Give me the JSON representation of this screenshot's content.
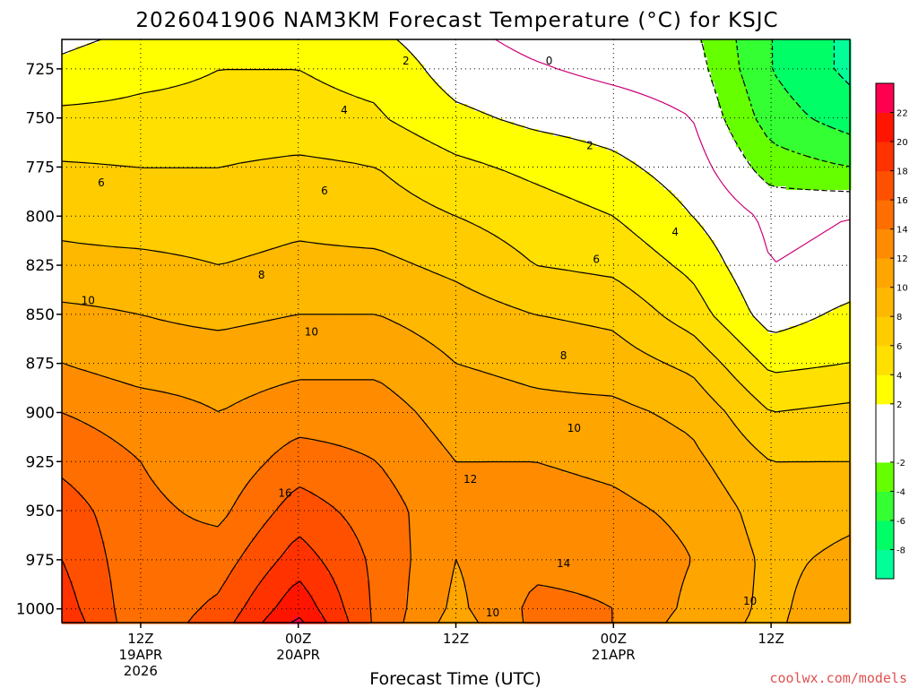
{
  "chart_data": {
    "type": "heatmap",
    "title": "2026041906 NAM3KM Forecast Temperature (°C) for KSJC",
    "xlabel": "Forecast Time (UTC)",
    "ylabel": "",
    "credit": "coolwx.com/models",
    "xlim": [
      0,
      60
    ],
    "x_ticks": [
      {
        "value": 6,
        "lines": [
          "12Z",
          "19APR",
          "2026"
        ]
      },
      {
        "value": 18,
        "lines": [
          "00Z",
          "20APR"
        ]
      },
      {
        "value": 30,
        "lines": [
          "12Z"
        ]
      },
      {
        "value": 42,
        "lines": [
          "00Z",
          "21APR"
        ]
      },
      {
        "value": 54,
        "lines": [
          "12Z"
        ]
      }
    ],
    "ylim": [
      1007,
      710
    ],
    "y_ticks": [
      725,
      750,
      775,
      800,
      825,
      850,
      875,
      900,
      925,
      950,
      975,
      1000
    ],
    "surface_pressure": 1007,
    "colorbar": {
      "levels": [
        -10,
        -8,
        -6,
        -4,
        -2,
        0,
        2,
        4,
        6,
        8,
        10,
        12,
        14,
        16,
        18,
        20,
        22,
        24
      ],
      "labels": [
        "-8",
        "-6",
        "-4",
        "-2",
        "2",
        "4",
        "6",
        "8",
        "10",
        "12",
        "14",
        "16",
        "18",
        "20",
        "22"
      ],
      "colors": [
        "#00ff99",
        "#00ff66",
        "#33ff33",
        "#66ff00",
        "#ffffff",
        "#ffffff",
        "#ffff00",
        "#ffe000",
        "#ffcc00",
        "#ffb800",
        "#ffa500",
        "#ff8c00",
        "#ff6e00",
        "#ff5000",
        "#ff3200",
        "#ff1400",
        "#ff0050"
      ]
    },
    "contour_labels": [
      {
        "text": "2",
        "x": 26.2,
        "p": 721
      },
      {
        "text": "0",
        "x": 37.1,
        "p": 721
      },
      {
        "text": "4",
        "x": 21.5,
        "p": 746
      },
      {
        "text": "2",
        "x": 40.2,
        "p": 764
      },
      {
        "text": "6",
        "x": 3.0,
        "p": 783
      },
      {
        "text": "6",
        "x": 20.0,
        "p": 787
      },
      {
        "text": "4",
        "x": 46.7,
        "p": 808
      },
      {
        "text": "6",
        "x": 40.7,
        "p": 822
      },
      {
        "text": "8",
        "x": 15.2,
        "p": 830
      },
      {
        "text": "10",
        "x": 2.0,
        "p": 843
      },
      {
        "text": "10",
        "x": 19.0,
        "p": 859
      },
      {
        "text": "8",
        "x": 38.2,
        "p": 871
      },
      {
        "text": "10",
        "x": 39.0,
        "p": 908
      },
      {
        "text": "12",
        "x": 31.1,
        "p": 934
      },
      {
        "text": "16",
        "x": 17.0,
        "p": 941
      },
      {
        "text": "14",
        "x": 38.2,
        "p": 977
      },
      {
        "text": "10",
        "x": 52.4,
        "p": 996
      },
      {
        "text": "10",
        "x": 32.8,
        "p": 1002
      }
    ],
    "temperature_grid": {
      "x": [
        0,
        6,
        12,
        18,
        24,
        30,
        36,
        42,
        48,
        54,
        60
      ],
      "p": [
        710,
        725,
        750,
        775,
        800,
        825,
        850,
        875,
        900,
        925,
        950,
        975,
        1000,
        1007
      ],
      "values": [
        [
          1.5,
          2.5,
          3.0,
          3.0,
          2.5,
          0.5,
          -0.5,
          -1.0,
          -1.5,
          -6.0,
          -8.5
        ],
        [
          2.5,
          3.5,
          4.0,
          4.0,
          3.5,
          1.0,
          0.2,
          -0.5,
          -1.0,
          -6.0,
          -8.5
        ],
        [
          4.5,
          4.5,
          4.5,
          4.5,
          4.2,
          2.5,
          1.5,
          1.0,
          0.0,
          -5.0,
          -7.0
        ],
        [
          6.2,
          6.0,
          6.0,
          6.5,
          6.0,
          4.5,
          3.5,
          2.5,
          1.0,
          -3.0,
          -4.0
        ],
        [
          7.5,
          7.0,
          7.0,
          7.5,
          7.0,
          6.0,
          5.0,
          4.0,
          2.0,
          -0.5,
          0.0
        ],
        [
          8.5,
          8.5,
          8.0,
          8.5,
          8.5,
          7.5,
          6.0,
          5.5,
          3.5,
          0.0,
          0.5
        ],
        [
          10.5,
          10.0,
          9.5,
          10.0,
          10.0,
          9.0,
          8.0,
          7.5,
          5.0,
          1.0,
          2.5
        ],
        [
          12.0,
          11.0,
          11.0,
          11.5,
          11.5,
          10.0,
          9.5,
          9.0,
          7.5,
          3.5,
          4.0
        ],
        [
          14.0,
          13.0,
          12.0,
          13.0,
          13.0,
          11.0,
          10.5,
          10.5,
          9.5,
          6.0,
          6.5
        ],
        [
          15.5,
          14.0,
          12.5,
          15.0,
          14.0,
          12.0,
          12.0,
          11.5,
          10.5,
          8.0,
          8.0
        ],
        [
          17.0,
          14.5,
          13.5,
          17.0,
          15.0,
          12.5,
          13.0,
          12.5,
          11.5,
          9.0,
          9.5
        ],
        [
          18.0,
          14.5,
          15.0,
          19.0,
          15.5,
          12.0,
          13.5,
          13.5,
          12.0,
          9.5,
          10.5
        ],
        [
          19.0,
          14.5,
          16.5,
          21.5,
          15.5,
          11.5,
          14.5,
          14.0,
          11.5,
          9.5,
          11.5
        ],
        [
          19.5,
          14.5,
          17.0,
          22.5,
          15.5,
          11.0,
          14.5,
          14.0,
          11.0,
          9.5,
          12.0
        ]
      ]
    }
  }
}
